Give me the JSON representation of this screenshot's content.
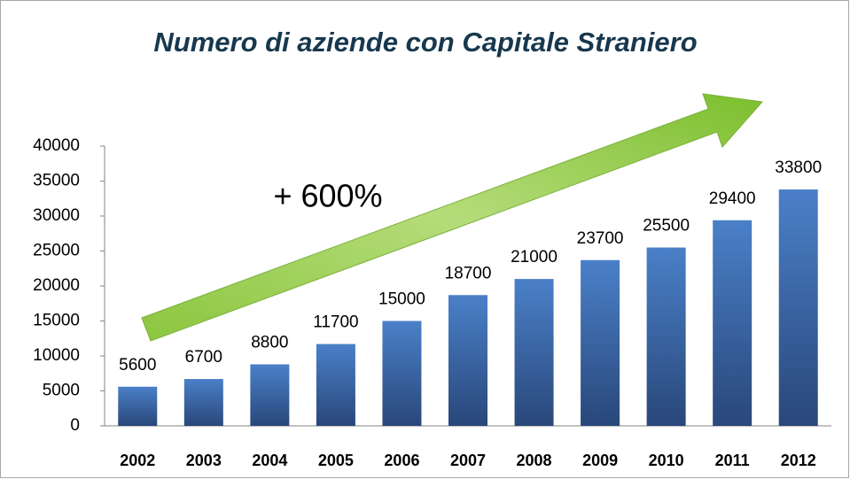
{
  "chart_data": {
    "type": "bar",
    "title": "Numero di aziende con Capitale Straniero",
    "annotation": "+ 600%",
    "categories": [
      "2002",
      "2003",
      "2004",
      "2005",
      "2006",
      "2007",
      "2008",
      "2009",
      "2010",
      "2011",
      "2012"
    ],
    "values": [
      5600,
      6700,
      8800,
      11700,
      15000,
      18700,
      21000,
      23700,
      25500,
      29400,
      33800
    ],
    "color": "#3f6fb0",
    "ylim": [
      0,
      40000
    ],
    "yticks": [
      0,
      5000,
      10000,
      15000,
      20000,
      25000,
      30000,
      35000,
      40000
    ],
    "grid": false
  }
}
